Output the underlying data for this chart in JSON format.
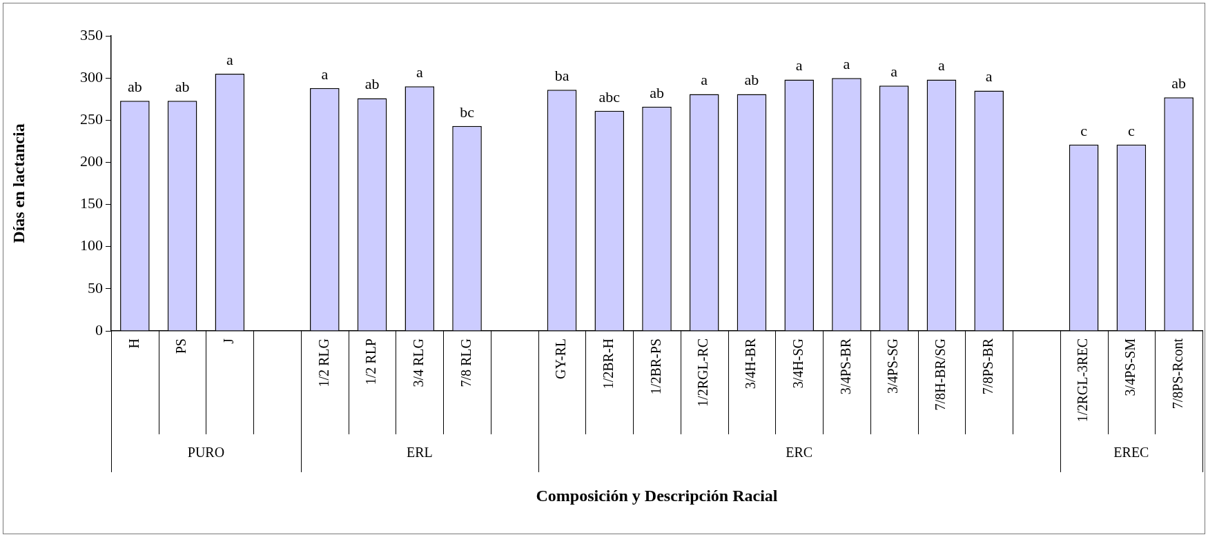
{
  "chart_data": {
    "type": "bar",
    "xlabel": "Composición y Descripción Racial",
    "ylabel": "Días en lactancia",
    "categories": [
      "H",
      "PS",
      "J",
      null,
      "1/2 RLG",
      "1/2 RLP",
      "3/4 RLG",
      "7/8 RLG",
      null,
      "GY-RL",
      "1/2BR-H",
      "1/2BR-PS",
      "1/2RGL-RC",
      "3/4H-BR",
      "3/4H-SG",
      "3/4PS-BR",
      "3/4PS-SG",
      "7/8H-BR/SG",
      "7/8PS-BR",
      null,
      "1/2RGL-3REC",
      "3/4PS-SM",
      "7/8PS-Rcont"
    ],
    "values": [
      273,
      273,
      305,
      null,
      288,
      276,
      290,
      243,
      null,
      286,
      261,
      266,
      281,
      281,
      298,
      300,
      291,
      298,
      285,
      null,
      221,
      221,
      277
    ],
    "value_labels": [
      "ab",
      "ab",
      "a",
      null,
      "a",
      "ab",
      "a",
      "bc",
      null,
      "ba",
      "abc",
      "ab",
      "a",
      "ab",
      "a",
      "a",
      "a",
      "a",
      "a",
      null,
      "c",
      "c",
      "ab"
    ],
    "color": "#ccccff",
    "ylim": [
      0,
      350
    ],
    "yticks": [
      0,
      50,
      100,
      150,
      200,
      250,
      300,
      350
    ],
    "grid": false,
    "legend": false,
    "annotations": [
      "PURO",
      "ERL",
      "ERC",
      "EREC"
    ]
  }
}
